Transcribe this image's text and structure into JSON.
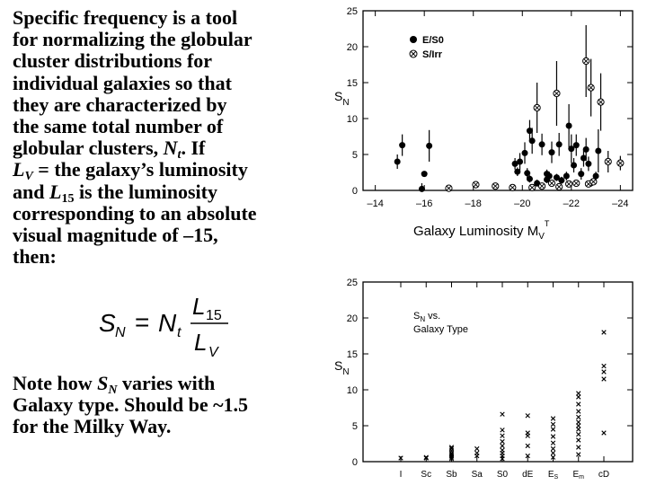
{
  "text": {
    "paragraph1_lines": [
      "Specific frequency is a tool",
      "for normalizing the globular",
      "cluster distributions for",
      "individual galaxies so that",
      "they are characterized by",
      "the same total number of"
    ],
    "line7_pre": "globular clusters, ",
    "line7_var": "N",
    "line7_sub": "t",
    "line7_post": ". If",
    "line8_var": "L",
    "line8_sub": "V",
    "line8_post": " = the galaxy’s luminosity",
    "line9_pre": "and ",
    "line9_var": "L",
    "line9_sub": "15",
    "line9_post": " is the luminosity",
    "line10": "corresponding to an absolute",
    "line11": "visual magnitude of –15,",
    "line12": "then:",
    "note_pre": "Note how ",
    "note_var": "S",
    "note_sub": "N",
    "note_post": " varies with",
    "note_line2": "Galaxy type. Should be ~1.5",
    "note_line3": "for the Milky Way."
  },
  "formula": {
    "lhs": "S",
    "lhs_sub": "N",
    "equals": "=",
    "rhs": "N",
    "rhs_sub": "t",
    "num": "L",
    "num_sub": "15",
    "den": "L",
    "den_sub": "V"
  },
  "chart_data": [
    {
      "type": "scatter",
      "title": "",
      "ylabel": "S_N",
      "xlabel": "Galaxy Luminosity M_V^T",
      "xlabel_main": "Galaxy Luminosity M",
      "xlabel_sub": "V",
      "xlabel_sup": "T",
      "ylabel_main": "S",
      "ylabel_sub": "N",
      "xlim": [
        -13.5,
        -24.5
      ],
      "ylim": [
        0,
        25
      ],
      "xticks": [
        -14,
        -16,
        -18,
        -20,
        -22,
        -24
      ],
      "xtick_labels": [
        "–14",
        "–16",
        "–18",
        "–20",
        "–22",
        "–24"
      ],
      "yticks": [
        0,
        5,
        10,
        15,
        20,
        25
      ],
      "ytick_labels": [
        "0",
        "5",
        "10",
        "15",
        "20",
        "25"
      ],
      "legend": [
        "E/S0",
        "S/Irr"
      ],
      "series": [
        {
          "name": "E/S0",
          "points": [
            {
              "x": -14.9,
              "y": 4.0,
              "err": 1.0
            },
            {
              "x": -15.1,
              "y": 6.3,
              "err": 1.5
            },
            {
              "x": -16.0,
              "y": 2.3,
              "err": 0.0
            },
            {
              "x": -16.2,
              "y": 6.2,
              "err": 2.2
            },
            {
              "x": -15.9,
              "y": 0.2,
              "err": 0.8
            },
            {
              "x": -19.7,
              "y": 3.7,
              "err": 0.8
            },
            {
              "x": -19.8,
              "y": 2.6,
              "err": 0.6
            },
            {
              "x": -19.9,
              "y": 4.0,
              "err": 1.2
            },
            {
              "x": -20.1,
              "y": 5.2,
              "err": 1.5
            },
            {
              "x": -20.2,
              "y": 2.4,
              "err": 0.7
            },
            {
              "x": -20.3,
              "y": 1.6,
              "err": 0.5
            },
            {
              "x": -20.3,
              "y": 8.3,
              "err": 1.5
            },
            {
              "x": -20.4,
              "y": 6.9,
              "err": 1.8
            },
            {
              "x": -20.6,
              "y": 1.0,
              "err": 0.5
            },
            {
              "x": -20.8,
              "y": 6.4,
              "err": 1.5
            },
            {
              "x": -21.0,
              "y": 2.3,
              "err": 0.6
            },
            {
              "x": -21.0,
              "y": 1.5,
              "err": 0.5
            },
            {
              "x": -21.1,
              "y": 2.0,
              "err": 0.6
            },
            {
              "x": -21.2,
              "y": 5.3,
              "err": 1.5
            },
            {
              "x": -21.4,
              "y": 1.8,
              "err": 0.5
            },
            {
              "x": -21.5,
              "y": 6.4,
              "err": 1.6
            },
            {
              "x": -21.6,
              "y": 1.4,
              "err": 0.5
            },
            {
              "x": -21.8,
              "y": 2.0,
              "err": 0.6
            },
            {
              "x": -21.9,
              "y": 9.0,
              "err": 3.0
            },
            {
              "x": -22.0,
              "y": 5.8,
              "err": 2.0
            },
            {
              "x": -22.1,
              "y": 3.5,
              "err": 1.0
            },
            {
              "x": -22.2,
              "y": 6.3,
              "err": 1.5
            },
            {
              "x": -22.4,
              "y": 2.3,
              "err": 0.8
            },
            {
              "x": -22.5,
              "y": 4.5,
              "err": 1.2
            },
            {
              "x": -22.6,
              "y": 5.7,
              "err": 1.6
            },
            {
              "x": -22.7,
              "y": 3.7,
              "err": 1.0
            },
            {
              "x": -22.8,
              "y": 1.0,
              "err": 0.5
            },
            {
              "x": -23.0,
              "y": 2.0,
              "err": 0.6
            },
            {
              "x": -23.1,
              "y": 5.5,
              "err": 3.0
            }
          ]
        },
        {
          "name": "S/Irr",
          "points": [
            {
              "x": -17.0,
              "y": 0.3,
              "err": 0.0
            },
            {
              "x": -18.1,
              "y": 0.8,
              "err": 0.0
            },
            {
              "x": -18.9,
              "y": 0.6,
              "err": 0.0
            },
            {
              "x": -19.6,
              "y": 0.4,
              "err": 0.0
            },
            {
              "x": -20.4,
              "y": 0.4,
              "err": 0.0
            },
            {
              "x": -20.8,
              "y": 0.6,
              "err": 0.0
            },
            {
              "x": -21.2,
              "y": 1.0,
              "err": 0.0
            },
            {
              "x": -21.5,
              "y": 0.5,
              "err": 0.0
            },
            {
              "x": -21.9,
              "y": 0.9,
              "err": 0.0
            },
            {
              "x": -22.2,
              "y": 1.0,
              "err": 0.0
            },
            {
              "x": -22.7,
              "y": 0.9,
              "err": 0.0
            },
            {
              "x": -22.9,
              "y": 1.2,
              "err": 0.0
            },
            {
              "x": -20.6,
              "y": 11.5,
              "err": 3.5
            },
            {
              "x": -21.4,
              "y": 13.5,
              "err": 4.5
            },
            {
              "x": -22.6,
              "y": 18.0,
              "err": 5.0
            },
            {
              "x": -22.8,
              "y": 14.3,
              "err": 4.0
            },
            {
              "x": -23.2,
              "y": 12.3,
              "err": 4.0
            },
            {
              "x": -23.5,
              "y": 4.0,
              "err": 1.5
            },
            {
              "x": -24.0,
              "y": 3.8,
              "err": 1.0
            }
          ]
        }
      ]
    },
    {
      "type": "scatter",
      "title": "S_N vs. Galaxy Type",
      "title_line1_main": "S",
      "title_line1_sub": "N",
      "title_line1_post": " vs.",
      "title_line2": "Galaxy Type",
      "ylabel": "S_N",
      "ylabel_main": "S",
      "ylabel_sub": "N",
      "ylim": [
        0,
        25
      ],
      "yticks": [
        0,
        5,
        10,
        15,
        20,
        25
      ],
      "ytick_labels": [
        "0",
        "5",
        "10",
        "15",
        "20",
        "25"
      ],
      "categories": [
        "I",
        "Sc",
        "Sb",
        "Sa",
        "S0",
        "dE",
        "Es",
        "Em",
        "cD"
      ],
      "category_labels": [
        {
          "main": "I",
          "sub": ""
        },
        {
          "main": "Sc",
          "sub": ""
        },
        {
          "main": "Sb",
          "sub": ""
        },
        {
          "main": "Sa",
          "sub": ""
        },
        {
          "main": "S0",
          "sub": ""
        },
        {
          "main": "dE",
          "sub": ""
        },
        {
          "main": "E",
          "sub": "S"
        },
        {
          "main": "E",
          "sub": "m"
        },
        {
          "main": "cD",
          "sub": ""
        }
      ],
      "marker": "x",
      "points_by_category": [
        [
          0.5
        ],
        [
          0.5,
          0.6
        ],
        [
          0.4,
          0.6,
          0.8,
          1.0,
          1.2,
          1.5,
          1.8,
          2.0
        ],
        [
          0.8,
          1.2,
          1.8
        ],
        [
          0.4,
          0.8,
          1.2,
          1.6,
          2.2,
          2.8,
          3.6,
          4.4,
          6.6
        ],
        [
          0.8,
          2.2,
          3.6,
          4.0,
          6.4
        ],
        [
          0.6,
          1.2,
          1.8,
          2.6,
          3.5,
          4.5,
          5.2,
          6.0
        ],
        [
          1.0,
          2.0,
          3.0,
          3.8,
          4.5,
          5.0,
          5.5,
          6.2,
          7.0,
          8.0,
          9.0,
          9.5
        ],
        [
          4.0,
          11.5,
          12.5,
          13.3,
          18.0
        ]
      ]
    }
  ]
}
